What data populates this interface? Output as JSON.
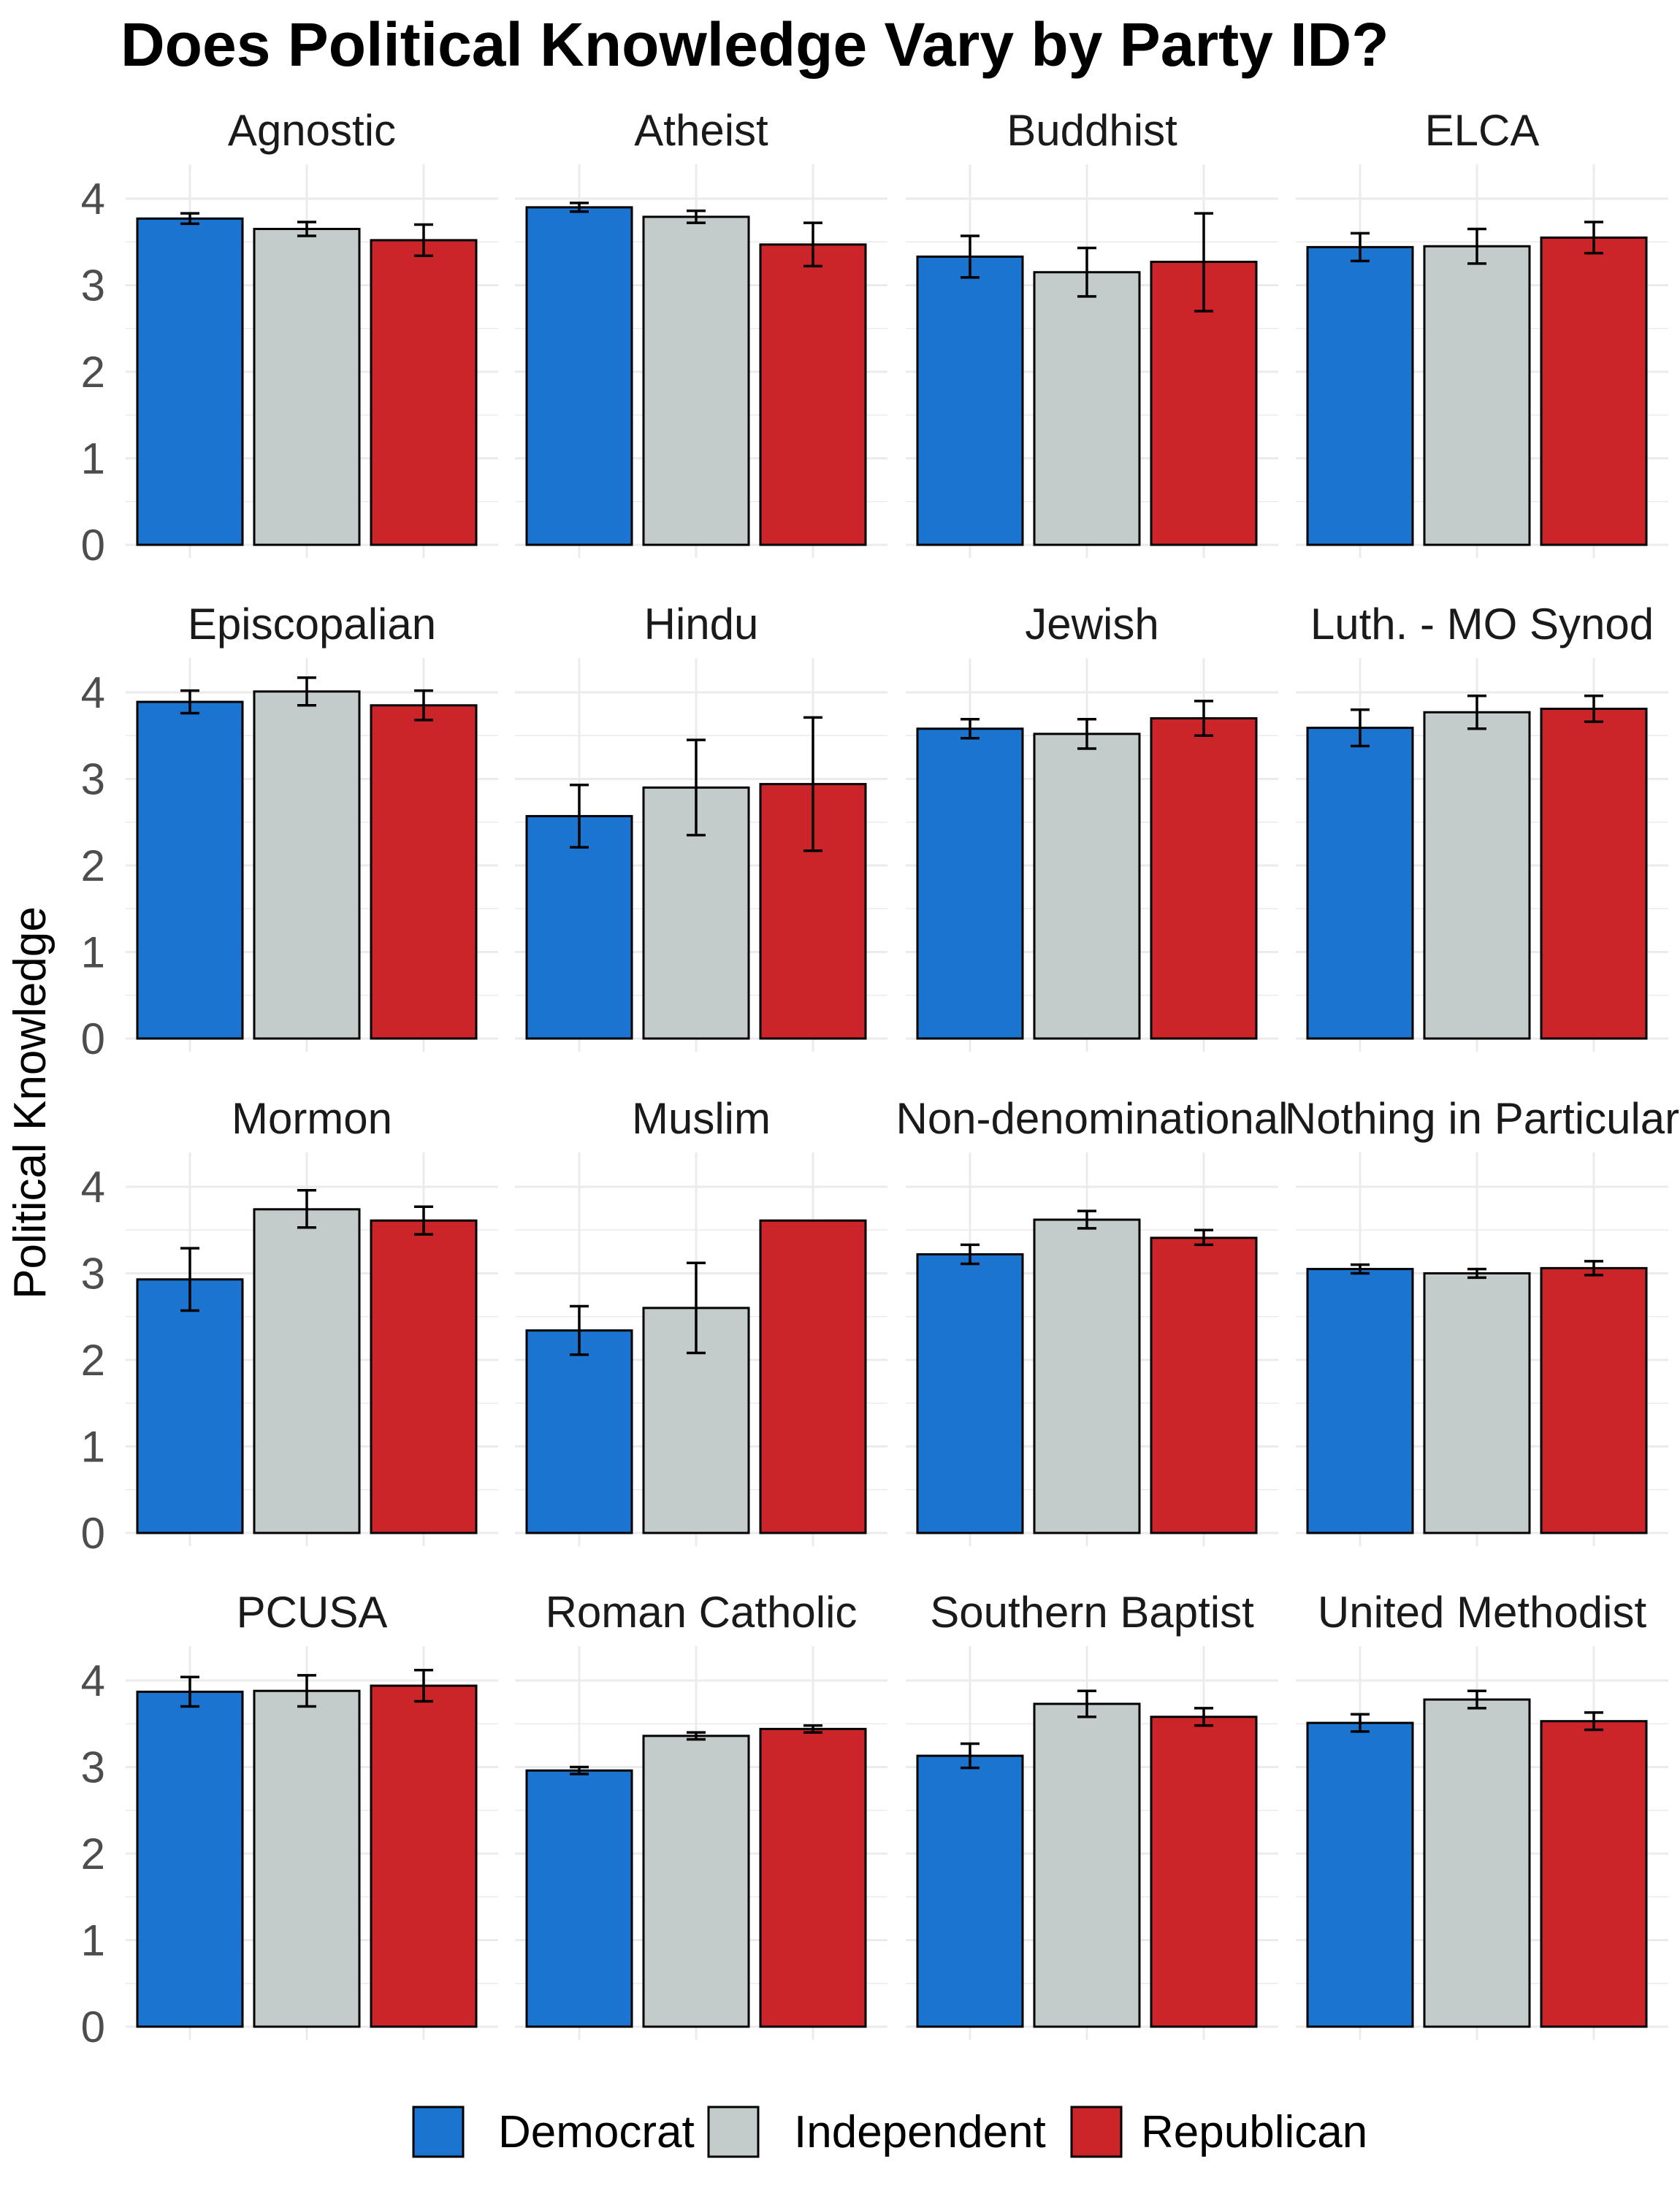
{
  "chart_data": {
    "type": "bar",
    "title": "Does Political Knowledge Vary by Party ID?",
    "xlabel": "",
    "ylabel": "Political Knowledge",
    "ylim": [
      0,
      4.4
    ],
    "yticks": [
      0,
      1,
      2,
      3,
      4
    ],
    "grid": true,
    "legend_position": "bottom",
    "series": [
      {
        "name": "Democrat",
        "color": "#1b75d0"
      },
      {
        "name": "Independent",
        "color": "#c3ccca"
      },
      {
        "name": "Republican",
        "color": "#cc2529"
      }
    ],
    "panels": [
      {
        "label": "Agnostic",
        "values": [
          3.77,
          3.65,
          3.52
        ],
        "err_low": [
          3.71,
          3.57,
          3.34
        ],
        "err_high": [
          3.83,
          3.73,
          3.7
        ]
      },
      {
        "label": "Atheist",
        "values": [
          3.9,
          3.79,
          3.47
        ],
        "err_low": [
          3.85,
          3.72,
          3.22
        ],
        "err_high": [
          3.95,
          3.86,
          3.72
        ]
      },
      {
        "label": "Buddhist",
        "values": [
          3.33,
          3.15,
          3.27
        ],
        "err_low": [
          3.09,
          2.87,
          2.7
        ],
        "err_high": [
          3.57,
          3.43,
          3.83
        ]
      },
      {
        "label": "ELCA",
        "values": [
          3.44,
          3.45,
          3.55
        ],
        "err_low": [
          3.28,
          3.25,
          3.37
        ],
        "err_high": [
          3.6,
          3.65,
          3.73
        ]
      },
      {
        "label": "Episcopalian",
        "values": [
          3.89,
          4.01,
          3.85
        ],
        "err_low": [
          3.76,
          3.85,
          3.68
        ],
        "err_high": [
          4.02,
          4.17,
          4.02
        ]
      },
      {
        "label": "Hindu",
        "values": [
          2.57,
          2.9,
          2.94
        ],
        "err_low": [
          2.21,
          2.35,
          2.17
        ],
        "err_high": [
          2.93,
          3.45,
          3.71
        ]
      },
      {
        "label": "Jewish",
        "values": [
          3.58,
          3.52,
          3.7
        ],
        "err_low": [
          3.47,
          3.35,
          3.5
        ],
        "err_high": [
          3.69,
          3.69,
          3.9
        ]
      },
      {
        "label": "Luth. - MO Synod",
        "values": [
          3.59,
          3.77,
          3.81
        ],
        "err_low": [
          3.38,
          3.58,
          3.66
        ],
        "err_high": [
          3.8,
          3.96,
          3.96
        ]
      },
      {
        "label": "Mormon",
        "values": [
          2.93,
          3.74,
          3.61
        ],
        "err_low": [
          2.57,
          3.53,
          3.45
        ],
        "err_high": [
          3.29,
          3.96,
          3.77
        ]
      },
      {
        "label": "Muslim",
        "values": [
          2.34,
          2.6,
          3.61
        ],
        "err_low": [
          2.06,
          2.08,
          3.61
        ],
        "err_high": [
          2.62,
          3.12,
          3.61
        ]
      },
      {
        "label": "Non-denominational",
        "values": [
          3.22,
          3.62,
          3.41
        ],
        "err_low": [
          3.11,
          3.52,
          3.33
        ],
        "err_high": [
          3.33,
          3.72,
          3.5
        ]
      },
      {
        "label": "Nothing in Particular",
        "values": [
          3.05,
          3.0,
          3.06
        ],
        "err_low": [
          3.0,
          2.95,
          2.98
        ],
        "err_high": [
          3.1,
          3.05,
          3.14
        ]
      },
      {
        "label": "PCUSA",
        "values": [
          3.87,
          3.88,
          3.94
        ],
        "err_low": [
          3.7,
          3.7,
          3.76
        ],
        "err_high": [
          4.04,
          4.06,
          4.12
        ]
      },
      {
        "label": "Roman Catholic",
        "values": [
          2.96,
          3.36,
          3.44
        ],
        "err_low": [
          2.92,
          3.32,
          3.4
        ],
        "err_high": [
          3.0,
          3.4,
          3.48
        ]
      },
      {
        "label": "Southern Baptist",
        "values": [
          3.13,
          3.73,
          3.58
        ],
        "err_low": [
          2.99,
          3.58,
          3.48
        ],
        "err_high": [
          3.27,
          3.88,
          3.68
        ]
      },
      {
        "label": "United Methodist",
        "values": [
          3.51,
          3.78,
          3.53
        ],
        "err_low": [
          3.41,
          3.68,
          3.43
        ],
        "err_high": [
          3.61,
          3.88,
          3.63
        ]
      }
    ]
  }
}
